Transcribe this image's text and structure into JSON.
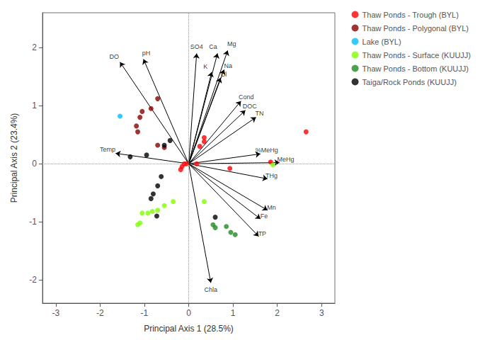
{
  "chart_data": {
    "type": "scatter",
    "xlabel": "Principal Axis 1 (28.5%)",
    "ylabel": "Principal Axis 2 (23.4%)",
    "xlim": [
      -3.3,
      3.3
    ],
    "ylim": [
      -2.4,
      2.6
    ],
    "xticks": [
      -3,
      -2,
      -1,
      0,
      1,
      2,
      3
    ],
    "yticks": [
      -2,
      -1,
      0,
      1,
      2
    ],
    "grid": false,
    "legend": "upper right",
    "origin": [
      0,
      0
    ],
    "arrows": [
      {
        "label": "DO",
        "x": -1.55,
        "y": 1.75,
        "dx": -0.13,
        "dy": 0.1
      },
      {
        "label": "pH",
        "x": -1.02,
        "y": 1.8,
        "dx": 0.06,
        "dy": 0.1
      },
      {
        "label": "SO4",
        "x": 0.18,
        "y": 1.9,
        "dx": 0.0,
        "dy": 0.12
      },
      {
        "label": "Ca",
        "x": 0.65,
        "y": 1.9,
        "dx": -0.1,
        "dy": 0.11
      },
      {
        "label": "Mg",
        "x": 0.88,
        "y": 1.95,
        "dx": 0.09,
        "dy": 0.11
      },
      {
        "label": "K",
        "x": 0.52,
        "y": 1.58,
        "dx": -0.14,
        "dy": 0.09
      },
      {
        "label": "Na",
        "x": 0.8,
        "y": 1.62,
        "dx": 0.09,
        "dy": 0.07
      },
      {
        "label": "Cl",
        "x": 0.72,
        "y": 1.48,
        "dx": 0.07,
        "dy": 0.06
      },
      {
        "label": "Cond",
        "x": 1.18,
        "y": 1.08,
        "dx": 0.12,
        "dy": 0.07
      },
      {
        "label": "DOC",
        "x": 1.28,
        "y": 0.92,
        "dx": 0.1,
        "dy": 0.07
      },
      {
        "label": "TN",
        "x": 1.52,
        "y": 0.8,
        "dx": 0.08,
        "dy": 0.07
      },
      {
        "label": "%MeHg",
        "x": 1.62,
        "y": 0.17,
        "dx": 0.14,
        "dy": 0.07
      },
      {
        "label": "MeHg",
        "x": 2.05,
        "y": 0.02,
        "dx": 0.14,
        "dy": 0.05
      },
      {
        "label": "THg",
        "x": 1.78,
        "y": -0.26,
        "dx": 0.09,
        "dy": 0.05
      },
      {
        "label": "Mn",
        "x": 1.78,
        "y": -0.8,
        "dx": 0.09,
        "dy": 0.05
      },
      {
        "label": "Fe",
        "x": 1.62,
        "y": -0.95,
        "dx": 0.08,
        "dy": 0.05
      },
      {
        "label": "TP",
        "x": 1.58,
        "y": -1.25,
        "dx": 0.08,
        "dy": 0.05
      },
      {
        "label": "Chla",
        "x": 0.5,
        "y": -2.05,
        "dx": 0.0,
        "dy": -0.12
      },
      {
        "label": "Temp",
        "x": -1.65,
        "y": 0.18,
        "dx": -0.18,
        "dy": 0.07
      }
    ],
    "series": [
      {
        "name": "Thaw Ponds - Trough (BYL)",
        "color": "#FF0000",
        "values": [
          [
            2.65,
            0.55
          ],
          [
            1.85,
            0.03
          ],
          [
            0.93,
            -0.08
          ],
          [
            0.35,
            0.45
          ],
          [
            0.35,
            0.38
          ],
          [
            0.25,
            0.3
          ],
          [
            0.18,
            0.0
          ],
          [
            -0.05,
            0.0
          ],
          [
            -0.1,
            0.0
          ],
          [
            -0.15,
            -0.05
          ],
          [
            -0.18,
            -0.1
          ]
        ]
      },
      {
        "name": "Thaw Ponds - Polygonal (BYL)",
        "color": "#8B0000",
        "values": [
          [
            -0.7,
            1.12
          ],
          [
            -0.85,
            0.95
          ],
          [
            -1.05,
            0.9
          ],
          [
            -1.1,
            0.8
          ],
          [
            -1.18,
            0.65
          ],
          [
            -1.15,
            0.55
          ],
          [
            -0.7,
            0.32
          ],
          [
            -0.55,
            0.28
          ]
        ]
      },
      {
        "name": "Lake (BYL)",
        "color": "#00BFFF",
        "values": [
          [
            -1.55,
            0.82
          ]
        ]
      },
      {
        "name": "Thaw Ponds - Surface (KUUJJ)",
        "color": "#7FFF00",
        "values": [
          [
            1.9,
            -0.02
          ],
          [
            0.35,
            -0.65
          ],
          [
            -0.55,
            -0.72
          ],
          [
            -0.7,
            -0.8
          ],
          [
            -0.82,
            -0.82
          ],
          [
            -0.92,
            -0.85
          ],
          [
            -1.05,
            -0.85
          ],
          [
            -1.1,
            -1.02
          ],
          [
            -1.15,
            -1.05
          ],
          [
            -0.35,
            -0.65
          ]
        ]
      },
      {
        "name": "Thaw Ponds - Bottom (KUUJJ)",
        "color": "#228B22",
        "values": [
          [
            0.85,
            -1.08
          ],
          [
            0.95,
            -1.18
          ],
          [
            1.05,
            -1.22
          ],
          [
            0.6,
            -1.1
          ],
          [
            0.55,
            -1.05
          ]
        ]
      },
      {
        "name": "Taiga/Rock Ponds (KUUJJ)",
        "color": "#000000",
        "values": [
          [
            -0.42,
            0.4
          ],
          [
            -0.55,
            0.32
          ],
          [
            -0.95,
            0.15
          ],
          [
            -1.32,
            0.12
          ],
          [
            -0.62,
            -0.22
          ],
          [
            -0.7,
            -0.38
          ],
          [
            -0.8,
            -0.52
          ],
          [
            -0.85,
            -0.6
          ],
          [
            -0.72,
            -0.9
          ],
          [
            0.6,
            -0.92
          ]
        ]
      }
    ]
  }
}
